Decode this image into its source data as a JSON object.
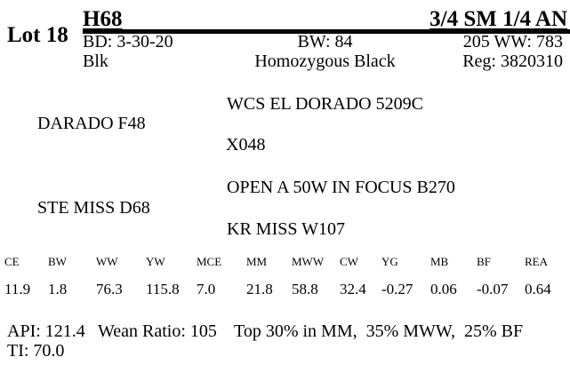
{
  "lot": {
    "label": "Lot 18"
  },
  "header": {
    "tattoo": "H68",
    "breed": "3/4 SM 1/4 AN",
    "birth_date": "BD: 3-30-20",
    "birth_weight": "BW: 84",
    "adj_weaning_weight": "205 WW: 783",
    "color": "Blk",
    "genetic_status": "Homozygous Black",
    "registration": "Reg: 3820310"
  },
  "pedigree": {
    "sire_sire": "WCS EL DORADO 5209C",
    "sire": "DARADO F48",
    "sire_dam": "X048",
    "dam_sire": "OPEN A 50W IN FOCUS B270",
    "dam": "STE MISS D68",
    "dam_dam": "KR MISS W107"
  },
  "epd": {
    "headers": [
      "CE",
      "BW",
      "WW",
      "YW",
      "MCE",
      "MM",
      "MWW",
      "CW",
      "YG",
      "MB",
      "BF",
      "REA"
    ],
    "values": [
      "11.9",
      "1.8",
      "76.3",
      "115.8",
      "7.0",
      "21.8",
      "58.8",
      "32.4",
      "-0.27",
      "0.06",
      "-0.07",
      "0.64"
    ]
  },
  "summary": {
    "api": "API: 121.4",
    "wean_ratio": "Wean Ratio: 105",
    "percentiles": "Top 30% in MM,  35% MWW,  25% BF",
    "ti": "TI: 70.0"
  },
  "colors": {
    "ink": "#000000",
    "paper": "#ffffff"
  }
}
